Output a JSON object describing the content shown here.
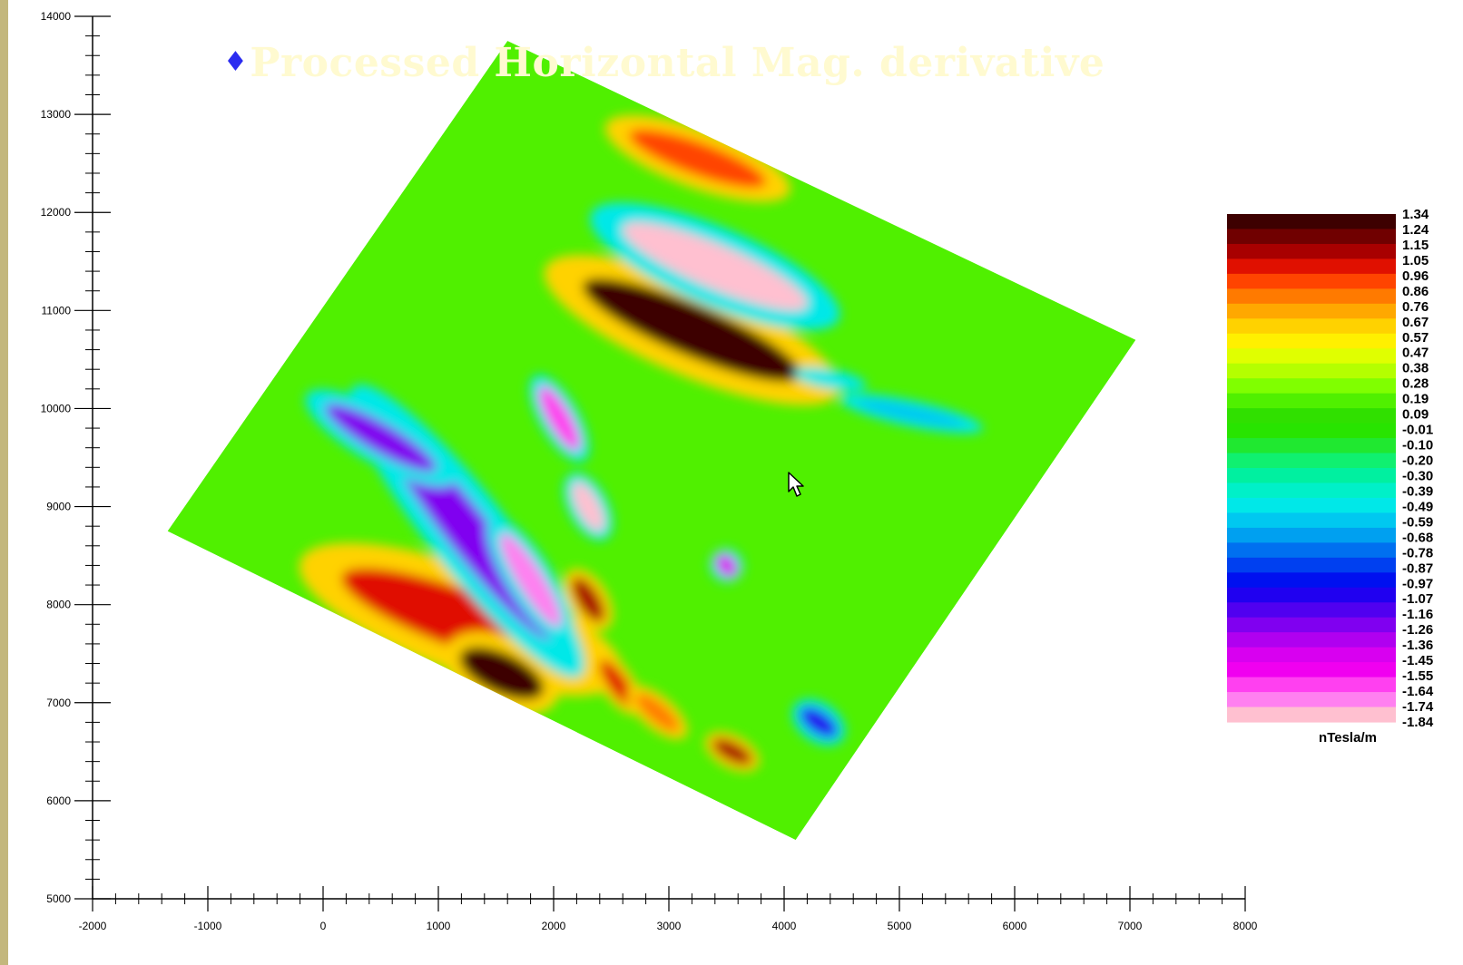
{
  "chart_data": {
    "type": "heatmap",
    "title": "Processed Horizontal Mag. derivative",
    "xlabel": "",
    "ylabel": "",
    "xlim": [
      -2000,
      8000
    ],
    "ylim": [
      5000,
      14000
    ],
    "x_ticks": [
      -2000,
      -1000,
      0,
      1000,
      2000,
      3000,
      4000,
      5000,
      6000,
      7000,
      8000
    ],
    "y_ticks": [
      5000,
      6000,
      7000,
      8000,
      9000,
      10000,
      11000,
      12000,
      13000,
      14000
    ],
    "survey_outline": [
      [
        1600,
        13750
      ],
      [
        7050,
        10700
      ],
      [
        4100,
        5600
      ],
      [
        -1350,
        8750
      ]
    ],
    "colorbar": {
      "unit": "nTesla/m",
      "values": [
        1.34,
        1.24,
        1.15,
        1.05,
        0.96,
        0.86,
        0.76,
        0.67,
        0.57,
        0.47,
        0.38,
        0.28,
        0.19,
        0.09,
        -0.01,
        -0.1,
        -0.2,
        -0.3,
        -0.39,
        -0.49,
        -0.59,
        -0.68,
        -0.78,
        -0.87,
        -0.97,
        -1.07,
        -1.16,
        -1.26,
        -1.36,
        -1.45,
        -1.55,
        -1.64,
        -1.74,
        -1.84
      ],
      "labels": [
        "1.34",
        "1.24",
        "1.15",
        "1.05",
        "0.96",
        "0.86",
        "0.76",
        "0.67",
        "0.57",
        "0.47",
        "0.38",
        "0.28",
        "0.19",
        "0.09",
        "-0.01",
        "-0.10",
        "-0.20",
        "-0.30",
        "-0.39",
        "-0.49",
        "-0.59",
        "-0.68",
        "-0.78",
        "-0.87",
        "-0.97",
        "-1.07",
        "-1.16",
        "-1.26",
        "-1.36",
        "-1.45",
        "-1.55",
        "-1.64",
        "-1.74",
        "-1.84"
      ],
      "colors": [
        "#3d0000",
        "#700000",
        "#a80000",
        "#e01000",
        "#ff4400",
        "#ff7a00",
        "#ffa800",
        "#ffd200",
        "#fff000",
        "#e0ff00",
        "#b4ff00",
        "#80ff00",
        "#50f000",
        "#30e000",
        "#28e400",
        "#20e830",
        "#10f070",
        "#00f0a0",
        "#00f0c8",
        "#00e8e8",
        "#00c8f0",
        "#00a0f0",
        "#0070f0",
        "#0040f0",
        "#0010f0",
        "#2000f0",
        "#5000f0",
        "#8000f0",
        "#b000f0",
        "#d800f0",
        "#f000f0",
        "#ff40f0",
        "#ff80f0",
        "#ffc0d0"
      ]
    },
    "anomalies": [
      {
        "x": 3200,
        "y": 10800,
        "value": 1.34
      },
      {
        "x": 3400,
        "y": 11450,
        "value": -1.84
      },
      {
        "x": 3250,
        "y": 12550,
        "value": 0.96
      },
      {
        "x": 1200,
        "y": 7850,
        "value": 1.05
      },
      {
        "x": 1550,
        "y": 7300,
        "value": 1.34
      },
      {
        "x": 1250,
        "y": 8750,
        "value": -1.26
      },
      {
        "x": 500,
        "y": 9700,
        "value": -1.26
      },
      {
        "x": 1800,
        "y": 8250,
        "value": -1.74
      },
      {
        "x": 2050,
        "y": 9900,
        "value": -1.64
      },
      {
        "x": 2300,
        "y": 9000,
        "value": -1.84
      },
      {
        "x": 2300,
        "y": 8050,
        "value": 1.15
      },
      {
        "x": 2550,
        "y": 7200,
        "value": 1.05
      },
      {
        "x": 2900,
        "y": 6900,
        "value": 0.86
      },
      {
        "x": 3550,
        "y": 6500,
        "value": 1.15
      },
      {
        "x": 4300,
        "y": 6800,
        "value": -1.07
      },
      {
        "x": 5100,
        "y": 9950,
        "value": -0.59
      },
      {
        "x": 4400,
        "y": 10300,
        "value": -0.49
      },
      {
        "x": 3500,
        "y": 8400,
        "value": -1.45
      }
    ]
  }
}
